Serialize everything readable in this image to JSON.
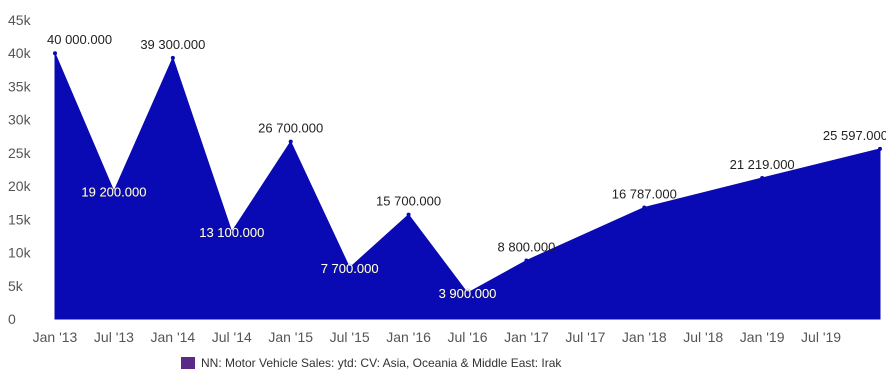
{
  "chart_data": {
    "type": "area",
    "series": [
      {
        "name": "NN: Motor Vehicle Sales: ytd: CV: Asia, Oceania & Middle East: Irak",
        "color": "#0A0AB4",
        "points": [
          {
            "x": "2013-01",
            "y": 40000,
            "label": "40 000.000"
          },
          {
            "x": "2013-07",
            "y": 19200,
            "label": "19 200.000"
          },
          {
            "x": "2014-01",
            "y": 39300,
            "label": "39 300.000"
          },
          {
            "x": "2014-07",
            "y": 13100,
            "label": "13 100.000"
          },
          {
            "x": "2015-01",
            "y": 26700,
            "label": "26 700.000"
          },
          {
            "x": "2015-07",
            "y": 7700,
            "label": "7 700.000"
          },
          {
            "x": "2016-01",
            "y": 15700,
            "label": "15 700.000"
          },
          {
            "x": "2016-07",
            "y": 3900,
            "label": "3 900.000"
          },
          {
            "x": "2017-01",
            "y": 8800,
            "label": "8 800.000"
          },
          {
            "x": "2018-01",
            "y": 16787,
            "label": "16 787.000"
          },
          {
            "x": "2019-01",
            "y": 21219,
            "label": "21 219.000"
          },
          {
            "x": "2020-01",
            "y": 25597,
            "label": "25 597.000"
          }
        ]
      }
    ],
    "x_ticks": [
      {
        "x": "2013-01",
        "label": "Jan '13"
      },
      {
        "x": "2013-07",
        "label": "Jul '13"
      },
      {
        "x": "2014-01",
        "label": "Jan '14"
      },
      {
        "x": "2014-07",
        "label": "Jul '14"
      },
      {
        "x": "2015-01",
        "label": "Jan '15"
      },
      {
        "x": "2015-07",
        "label": "Jul '15"
      },
      {
        "x": "2016-01",
        "label": "Jan '16"
      },
      {
        "x": "2016-07",
        "label": "Jul '16"
      },
      {
        "x": "2017-01",
        "label": "Jan '17"
      },
      {
        "x": "2017-07",
        "label": "Jul '17"
      },
      {
        "x": "2018-01",
        "label": "Jan '18"
      },
      {
        "x": "2018-07",
        "label": "Jul '18"
      },
      {
        "x": "2019-01",
        "label": "Jan '19"
      },
      {
        "x": "2019-07",
        "label": "Jul '19"
      }
    ],
    "y_ticks": [
      0,
      5000,
      10000,
      15000,
      20000,
      25000,
      30000,
      35000,
      40000,
      45000
    ],
    "y_tick_labels": [
      "0",
      "5k",
      "10k",
      "15k",
      "20k",
      "25k",
      "30k",
      "35k",
      "40k",
      "45k"
    ],
    "ylim": [
      0,
      45000
    ],
    "xlim": [
      "2013-01",
      "2020-01"
    ],
    "grid": false,
    "legend": "bottom-center"
  }
}
